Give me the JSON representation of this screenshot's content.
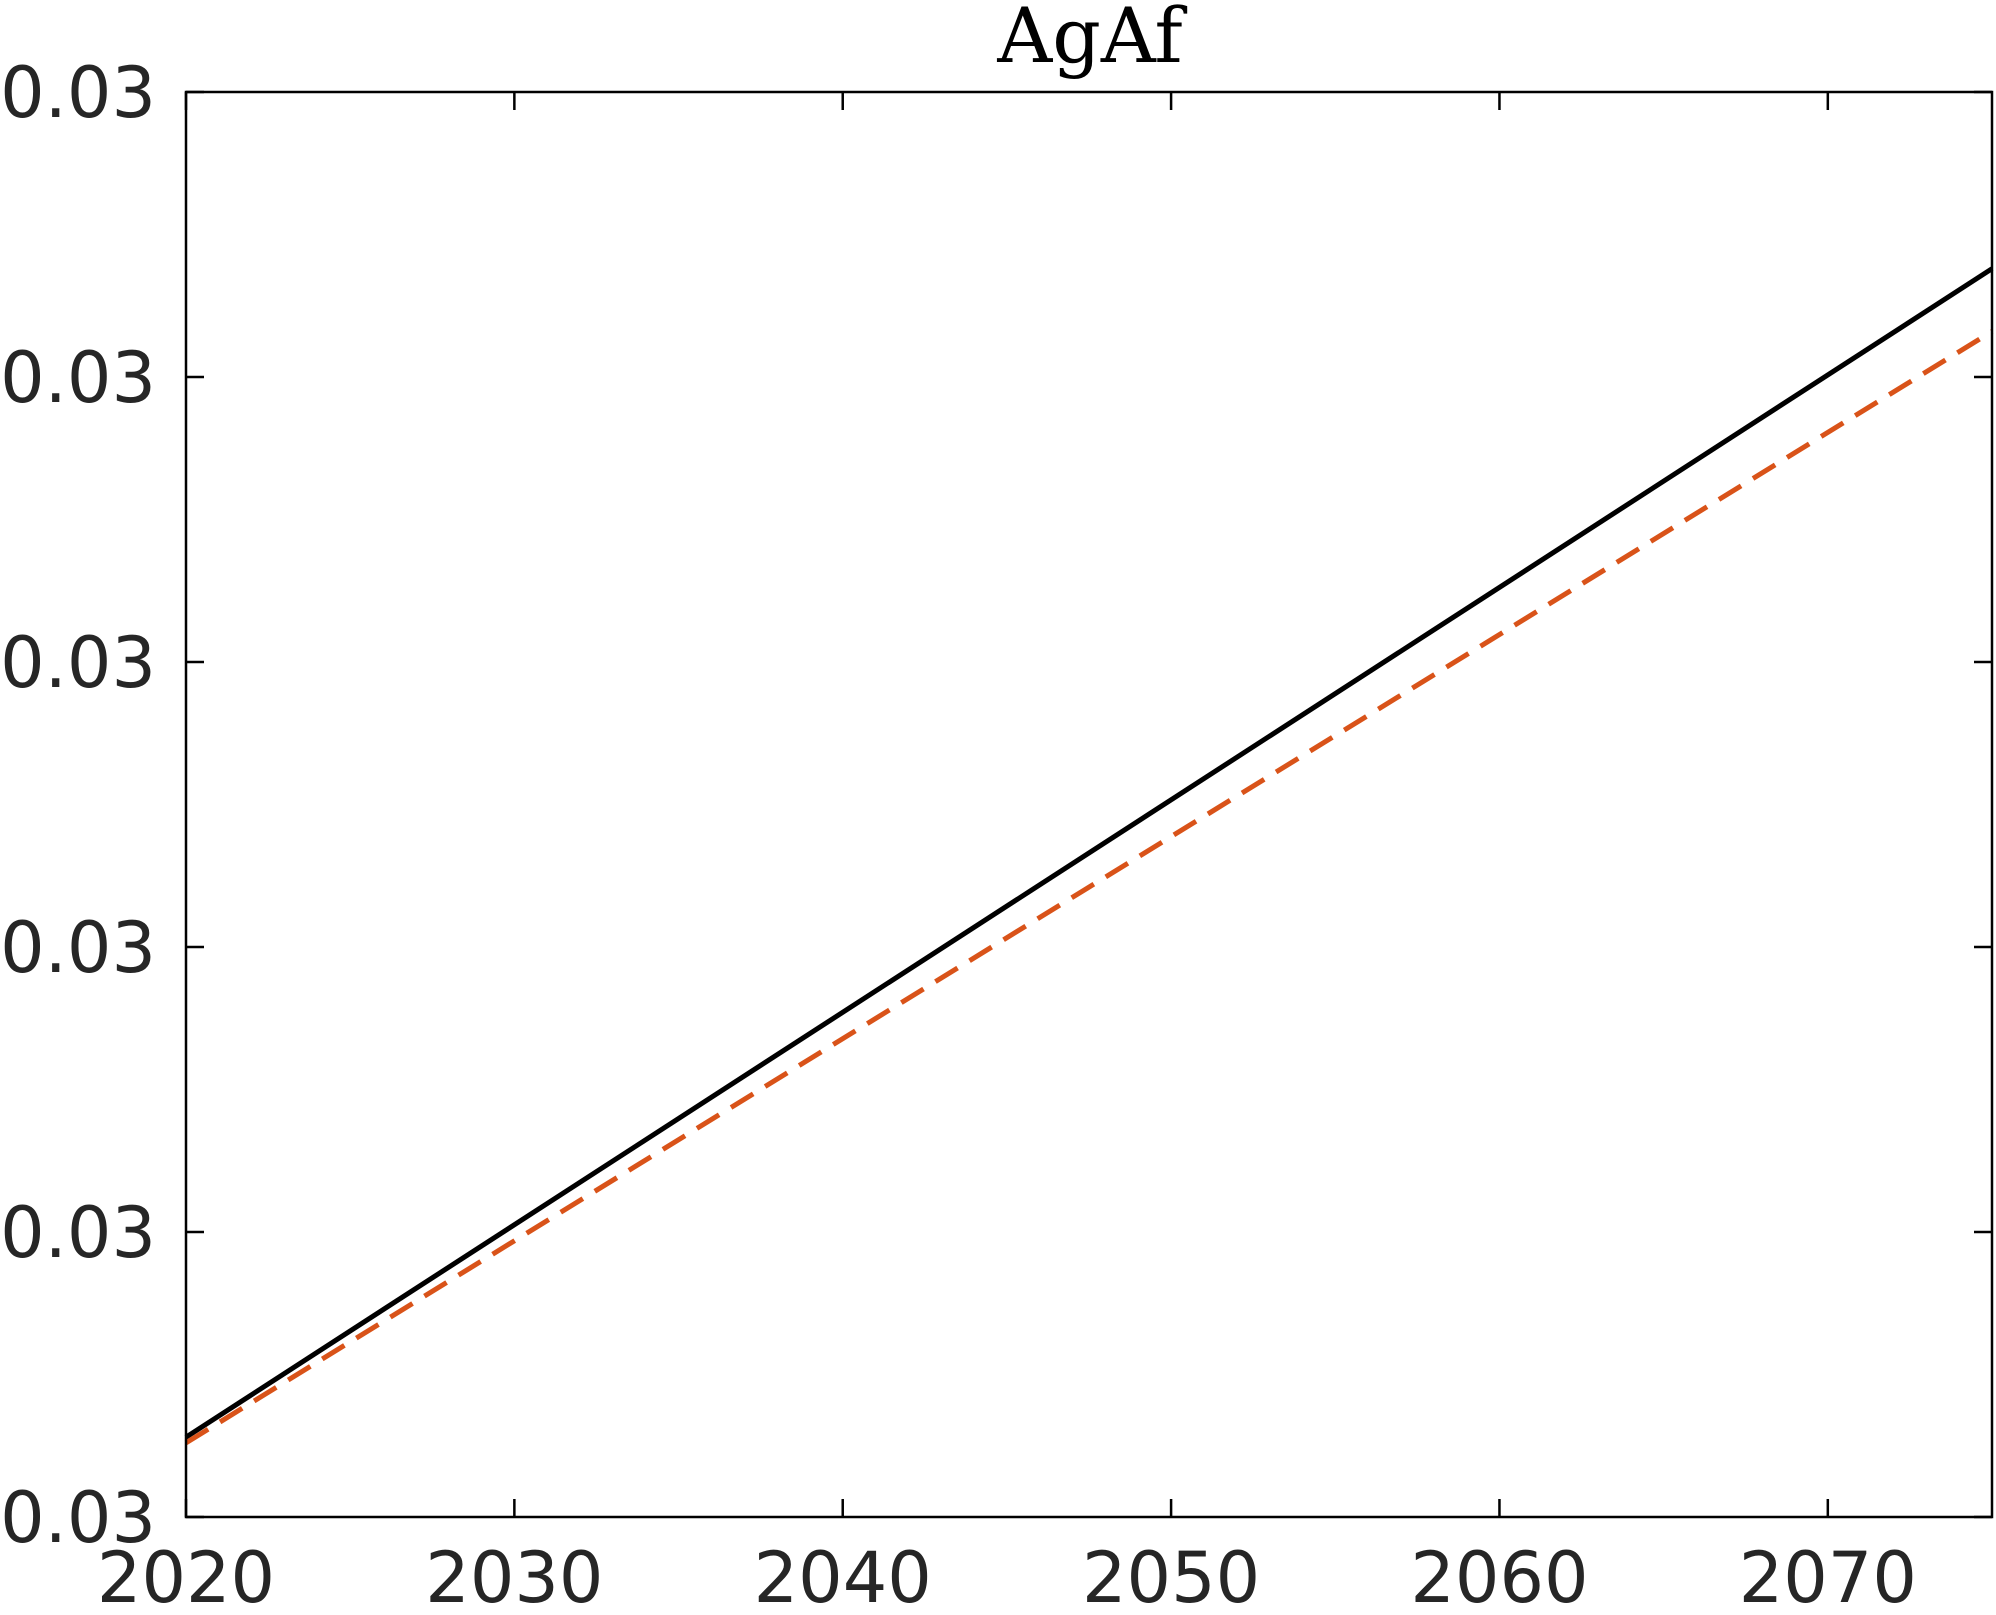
{
  "chart_data": {
    "type": "line",
    "title": "AgAf",
    "xlabel": "",
    "ylabel": "",
    "xlim": [
      2020,
      2075
    ],
    "ylim": [
      0,
      5
    ],
    "x_ticks": [
      2020,
      2030,
      2040,
      2050,
      2060,
      2070
    ],
    "y_ticks": [
      {
        "value": 0,
        "label": "0.03"
      },
      {
        "value": 1,
        "label": "0.03"
      },
      {
        "value": 2,
        "label": "0.03"
      },
      {
        "value": 3,
        "label": "0.03"
      },
      {
        "value": 4,
        "label": "0.03"
      },
      {
        "value": 5,
        "label": "0.03"
      }
    ],
    "grid": false,
    "series": [
      {
        "style": "solid",
        "color": "#000000",
        "x": [
          2020,
          2075
        ],
        "y": [
          0.28,
          4.38
        ]
      },
      {
        "style": "dashed",
        "color": "#D95319",
        "x": [
          2020,
          2075
        ],
        "y": [
          0.26,
          4.16
        ]
      }
    ]
  }
}
